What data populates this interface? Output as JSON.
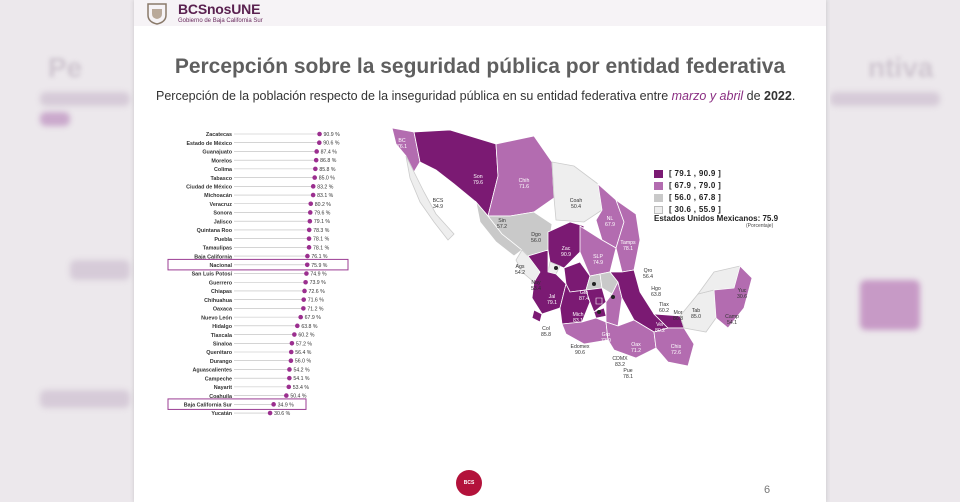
{
  "header": {
    "brand": "BCSnosUNE",
    "brand_sub": "Gobierno de Baja California Sur"
  },
  "slide": {
    "title": "Percepción sobre la seguridad pública por entidad federativa",
    "subtitle_prefix": "Percepción de la población respecto de la inseguridad pública en su entidad federativa entre ",
    "subtitle_highlight": "marzo y abril",
    "subtitle_mid": " de ",
    "subtitle_year": "2022",
    "subtitle_end": ".",
    "page_number": "6"
  },
  "chart_data": {
    "type": "dot",
    "xlim": [
      0,
      100
    ],
    "highlighted": [
      "Nacional",
      "Baja California Sur"
    ],
    "categories": [
      "Zacatecas",
      "Estado de México",
      "Guanajuato",
      "Morelos",
      "Colima",
      "Tabasco",
      "Ciudad de México",
      "Michoacán",
      "Veracruz",
      "Sonora",
      "Jalisco",
      "Quintana Roo",
      "Puebla",
      "Tamaulipas",
      "Baja California",
      "Nacional",
      "San Luis Potosí",
      "Guerrero",
      "Chiapas",
      "Chihuahua",
      "Oaxaca",
      "Nuevo León",
      "Hidalgo",
      "Tlaxcala",
      "Sinaloa",
      "Querétaro",
      "Durango",
      "Aguascalientes",
      "Campeche",
      "Nayarit",
      "Coahuila",
      "Baja California Sur",
      "Yucatán"
    ],
    "values": [
      90.9,
      90.6,
      87.4,
      86.8,
      85.8,
      85.0,
      83.2,
      83.1,
      80.2,
      79.6,
      79.1,
      78.3,
      78.1,
      78.1,
      76.1,
      75.9,
      74.9,
      73.9,
      72.6,
      71.6,
      71.2,
      67.9,
      63.8,
      60.2,
      57.2,
      56.4,
      56.0,
      54.2,
      54.1,
      53.4,
      50.4,
      34.9,
      30.6
    ],
    "value_labels": [
      "90.9 %",
      "90.6 %",
      "87.4 %",
      "86.8 %",
      "85.8 %",
      "85.0 %",
      "83.2 %",
      "83.1 %",
      "80.2 %",
      "79.6 %",
      "79.1 %",
      "78.3 %",
      "78.1 %",
      "78.1 %",
      "76.1 %",
      "75.9 %",
      "74.9 %",
      "73.9 %",
      "72.6 %",
      "71.6 %",
      "71.2 %",
      "67.9 %",
      "63.8 %",
      "60.2 %",
      "57.2 %",
      "56.4 %",
      "56.0 %",
      "54.2 %",
      "54.1 %",
      "53.4 %",
      "50.4 %",
      "34.9 %",
      "30.6 %"
    ]
  },
  "map": {
    "legend": [
      {
        "label": "[ 79.1 , 90.9 ]",
        "color": "#7b1a73"
      },
      {
        "label": "[ 67.9 , 79.0 ]",
        "color": "#b36cb0"
      },
      {
        "label": "[ 56.0 , 67.8 ]",
        "color": "#c9c9c9"
      },
      {
        "label": "[ 30.6 , 55.9 ]",
        "color": "#eeeeee"
      }
    ],
    "national_text": "Estados Unidos Mexicanos: 75.9",
    "national_sub": "(Porcentaje)",
    "labels": [
      {
        "abbr": "BC",
        "value": "76.1"
      },
      {
        "abbr": "Son",
        "value": "79.6"
      },
      {
        "abbr": "Chih",
        "value": "71.6"
      },
      {
        "abbr": "Coah",
        "value": "50.4"
      },
      {
        "abbr": "NL",
        "value": "67.9"
      },
      {
        "abbr": "BCS",
        "value": "34.9"
      },
      {
        "abbr": "Sin",
        "value": "57.2"
      },
      {
        "abbr": "Dgo",
        "value": "56.0"
      },
      {
        "abbr": "Tamps",
        "value": "78.1"
      },
      {
        "abbr": "Zac",
        "value": "90.9"
      },
      {
        "abbr": "SLP",
        "value": "74.9"
      },
      {
        "abbr": "Ags",
        "value": "54.2"
      },
      {
        "abbr": "Nay",
        "value": "53.4"
      },
      {
        "abbr": "Jal",
        "value": "79.1"
      },
      {
        "abbr": "Gto",
        "value": "87.4"
      },
      {
        "abbr": "Qro",
        "value": "56.4"
      },
      {
        "abbr": "Hgo",
        "value": "63.8"
      },
      {
        "abbr": "Col",
        "value": "85.8"
      },
      {
        "abbr": "Mich",
        "value": "83.1"
      },
      {
        "abbr": "Tlax",
        "value": "60.2"
      },
      {
        "abbr": "Mor",
        "value": "86.8"
      },
      {
        "abbr": "Tab",
        "value": "85.0"
      },
      {
        "abbr": "Ver",
        "value": "80.2"
      },
      {
        "abbr": "Yuc",
        "value": "30.6"
      },
      {
        "abbr": "Camp",
        "value": "54.1"
      },
      {
        "abbr": "QRoo",
        "value": "78.3"
      },
      {
        "abbr": "Edomex",
        "value": "90.6"
      },
      {
        "abbr": "Gro",
        "value": "73.9"
      },
      {
        "abbr": "Oax",
        "value": "71.2"
      },
      {
        "abbr": "Chis",
        "value": "72.6"
      },
      {
        "abbr": "CDMX",
        "value": "83.2"
      },
      {
        "abbr": "Pue",
        "value": "78.1"
      }
    ]
  }
}
